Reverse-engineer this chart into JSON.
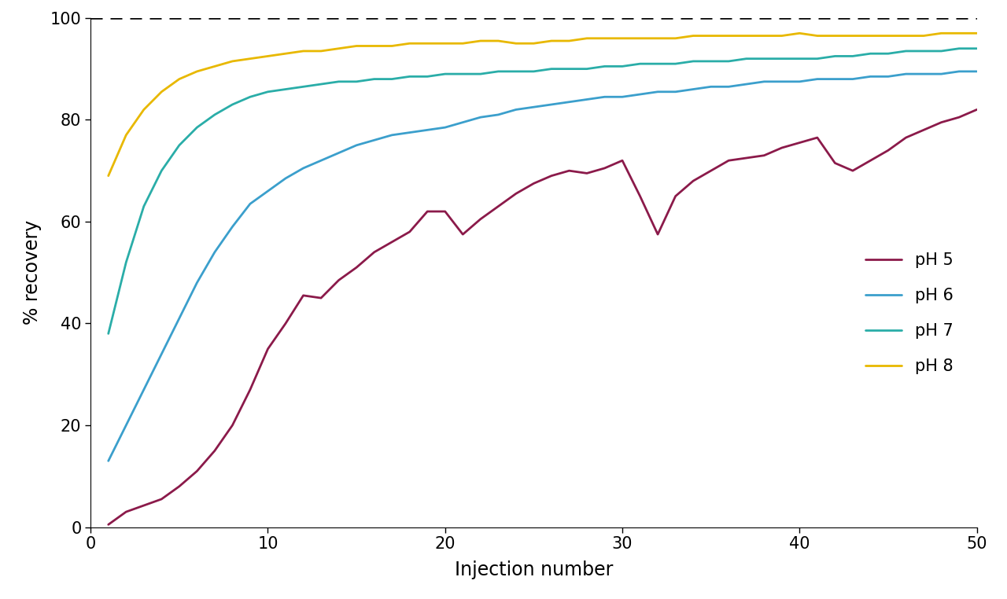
{
  "title": "",
  "xlabel": "Injection number",
  "ylabel": "% recovery",
  "xlim": [
    0,
    50
  ],
  "ylim": [
    0,
    100
  ],
  "dashed_line_y": 100,
  "colors": {
    "pH5": "#8B1A4A",
    "pH6": "#3B9FCC",
    "pH7": "#2AADA8",
    "pH8": "#E8B800"
  },
  "legend_labels": [
    "pH 5",
    "pH 6",
    "pH 7",
    "pH 8"
  ],
  "xticks": [
    0,
    10,
    20,
    30,
    40,
    50
  ],
  "yticks": [
    0,
    20,
    40,
    60,
    80,
    100
  ],
  "pH5": [
    1,
    0.5,
    2,
    3.0,
    4,
    5.5,
    5,
    8.0,
    6,
    11.0,
    7,
    15.0,
    8,
    20.0,
    9,
    27.0,
    10,
    35.0,
    11,
    40.0,
    12,
    45.5,
    13,
    45.0,
    14,
    48.5,
    15,
    51.0,
    16,
    54.0,
    17,
    56.0,
    18,
    58.0,
    19,
    62.0,
    20,
    62.0,
    21,
    57.5,
    22,
    60.5,
    23,
    63.0,
    24,
    65.5,
    25,
    67.5,
    26,
    69.0,
    27,
    70.0,
    28,
    69.5,
    29,
    70.5,
    30,
    72.0,
    31,
    65.0,
    32,
    57.5,
    33,
    65.0,
    34,
    68.0,
    35,
    70.0,
    36,
    72.0,
    37,
    72.5,
    38,
    73.0,
    39,
    74.5,
    40,
    75.5,
    41,
    76.5,
    42,
    71.5,
    43,
    70.0,
    44,
    72.0,
    45,
    74.0,
    46,
    76.5,
    47,
    78.0,
    48,
    79.5,
    49,
    80.5,
    50,
    82.0
  ],
  "pH6": [
    1,
    13.0,
    2,
    20.0,
    3,
    27.0,
    4,
    34.0,
    5,
    41.0,
    6,
    48.0,
    7,
    54.0,
    8,
    59.0,
    9,
    63.5,
    10,
    66.0,
    11,
    68.5,
    12,
    70.5,
    13,
    72.0,
    14,
    73.5,
    15,
    75.0,
    16,
    76.0,
    17,
    77.0,
    18,
    77.5,
    19,
    78.0,
    20,
    78.5,
    21,
    79.5,
    22,
    80.5,
    23,
    81.0,
    24,
    82.0,
    25,
    82.5,
    26,
    83.0,
    27,
    83.5,
    28,
    84.0,
    29,
    84.5,
    30,
    84.5,
    31,
    85.0,
    32,
    85.5,
    33,
    85.5,
    34,
    86.0,
    35,
    86.5,
    36,
    86.5,
    37,
    87.0,
    38,
    87.5,
    39,
    87.5,
    40,
    87.5,
    41,
    88.0,
    42,
    88.0,
    43,
    88.0,
    44,
    88.5,
    45,
    88.5,
    46,
    89.0,
    47,
    89.0,
    48,
    89.0,
    49,
    89.5,
    50,
    89.5
  ],
  "pH7": [
    1,
    38.0,
    2,
    52.0,
    3,
    63.0,
    4,
    70.0,
    5,
    75.0,
    6,
    78.5,
    7,
    81.0,
    8,
    83.0,
    9,
    84.5,
    10,
    85.5,
    11,
    86.0,
    12,
    86.5,
    13,
    87.0,
    14,
    87.5,
    15,
    87.5,
    16,
    88.0,
    17,
    88.0,
    18,
    88.5,
    19,
    88.5,
    20,
    89.0,
    21,
    89.0,
    22,
    89.0,
    23,
    89.5,
    24,
    89.5,
    25,
    89.5,
    26,
    90.0,
    27,
    90.0,
    28,
    90.0,
    29,
    90.5,
    30,
    90.5,
    31,
    91.0,
    32,
    91.0,
    33,
    91.0,
    34,
    91.5,
    35,
    91.5,
    36,
    91.5,
    37,
    92.0,
    38,
    92.0,
    39,
    92.0,
    40,
    92.0,
    41,
    92.0,
    42,
    92.5,
    43,
    92.5,
    44,
    93.0,
    45,
    93.0,
    46,
    93.5,
    47,
    93.5,
    48,
    93.5,
    49,
    94.0,
    50,
    94.0
  ],
  "pH8": [
    1,
    69.0,
    2,
    77.0,
    3,
    82.0,
    4,
    85.5,
    5,
    88.0,
    6,
    89.5,
    7,
    90.5,
    8,
    91.5,
    9,
    92.0,
    10,
    92.5,
    11,
    93.0,
    12,
    93.5,
    13,
    93.5,
    14,
    94.0,
    15,
    94.5,
    16,
    94.5,
    17,
    94.5,
    18,
    95.0,
    19,
    95.0,
    20,
    95.0,
    21,
    95.0,
    22,
    95.5,
    23,
    95.5,
    24,
    95.0,
    25,
    95.0,
    26,
    95.5,
    27,
    95.5,
    28,
    96.0,
    29,
    96.0,
    30,
    96.0,
    31,
    96.0,
    32,
    96.0,
    33,
    96.0,
    34,
    96.5,
    35,
    96.5,
    36,
    96.5,
    37,
    96.5,
    38,
    96.5,
    39,
    96.5,
    40,
    97.0,
    41,
    96.5,
    42,
    96.5,
    43,
    96.5,
    44,
    96.5,
    45,
    96.5,
    46,
    96.5,
    47,
    96.5,
    48,
    97.0,
    49,
    97.0,
    50,
    97.0
  ],
  "linewidth": 2.0,
  "background_color": "#ffffff",
  "legend_fontsize": 15,
  "axis_fontsize": 17,
  "tick_fontsize": 15
}
